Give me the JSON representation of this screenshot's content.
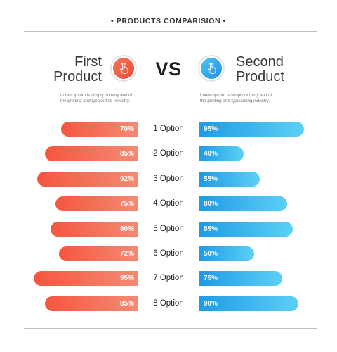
{
  "header": {
    "title": "• PRODUCTS COMPARISION •"
  },
  "first_product": {
    "name_line1": "First",
    "name_line2": "Product",
    "description_line1": "Lorem Ipsum is simply dummy text of",
    "description_line2": "the printing and typesetting industry."
  },
  "second_product": {
    "name_line1": "Second",
    "name_line2": "Product",
    "description_line1": "Lorem Ipsum is simply dummy text of",
    "description_line2": "the printing and typesetting industry."
  },
  "vs_label": "VS",
  "icons": {
    "first": "hand-pointer-icon",
    "second": "hand-pointer-icon"
  },
  "colors": {
    "first_accent": "#f15a40",
    "second_accent": "#2a9fe6"
  },
  "chart_data": {
    "type": "bar",
    "categories": [
      "1 Option",
      "2 Option",
      "3 Option",
      "4 Option",
      "5 Option",
      "6 Option",
      "7 Option",
      "8 Option"
    ],
    "series": [
      {
        "values": [
          70,
          85,
          92,
          75,
          80,
          72,
          95,
          85
        ],
        "labels": [
          "70%",
          "85%",
          "92%",
          "75%",
          "80%",
          "72%",
          "95%",
          "85%"
        ]
      },
      {
        "values": [
          95,
          40,
          55,
          80,
          85,
          50,
          75,
          90
        ],
        "labels": [
          "95%",
          "40%",
          "55%",
          "80%",
          "85%",
          "50%",
          "75%",
          "90%"
        ]
      }
    ],
    "value_unit": "%"
  }
}
